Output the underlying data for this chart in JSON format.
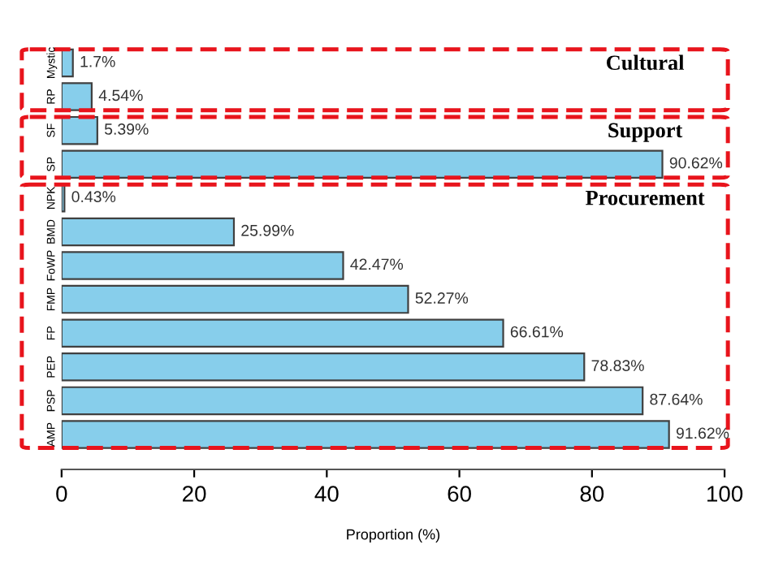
{
  "chart_data": {
    "type": "bar",
    "orientation": "horizontal",
    "xlabel": "Proportion (%)",
    "categories": [
      "Mystic",
      "RP",
      "SF",
      "SP",
      "NPK",
      "BMD",
      "FoWP",
      "FMP",
      "FP",
      "PEP",
      "PSP",
      "AMP"
    ],
    "values": [
      1.7,
      4.54,
      5.39,
      90.62,
      0.43,
      25.99,
      42.47,
      52.27,
      66.61,
      78.83,
      87.64,
      91.62
    ],
    "value_labels": [
      "1.7%",
      "4.54%",
      "5.39%",
      "90.62%",
      "0.43%",
      "25.99%",
      "42.47%",
      "52.27%",
      "66.61%",
      "78.83%",
      "87.64%",
      "91.62%"
    ],
    "color": "#87ceeb",
    "xlim": [
      0,
      100
    ],
    "xticks": [
      0,
      20,
      40,
      60,
      80,
      100
    ],
    "grid": false,
    "legend": false,
    "annotations": [
      "Cultural",
      "Support",
      "Procurement"
    ]
  }
}
